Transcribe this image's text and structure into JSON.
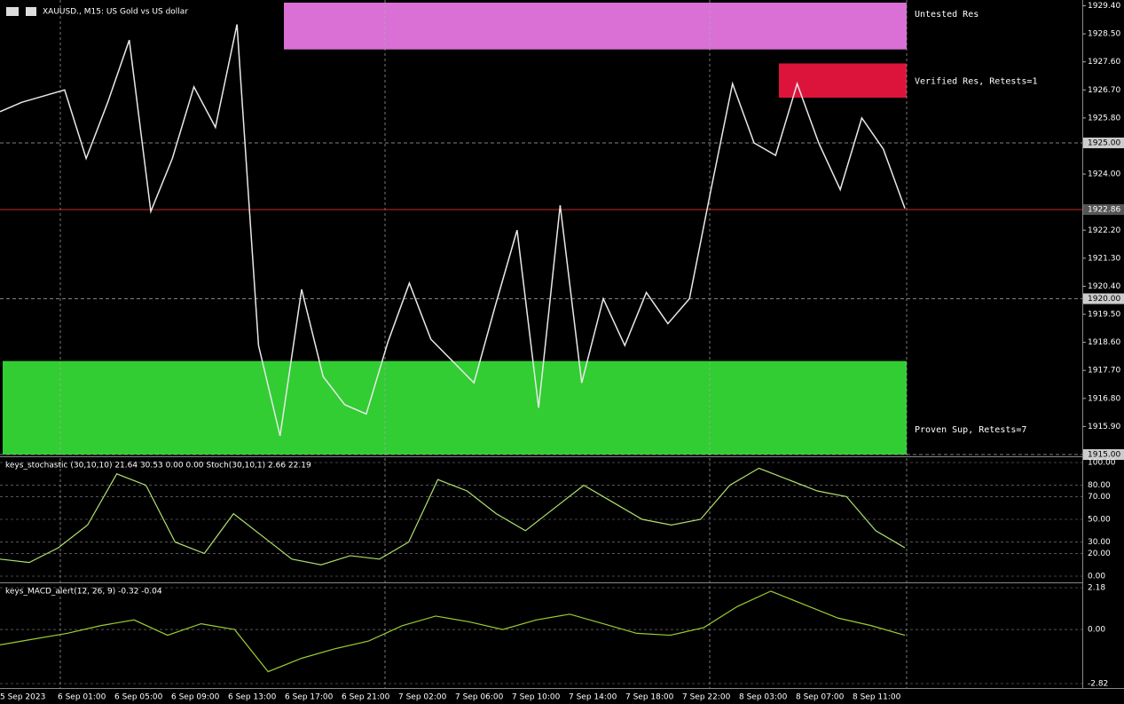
{
  "header": {
    "symbol": "XAUUSD., M15:  US Gold vs US dollar"
  },
  "price_axis": {
    "range": [
      1915.0,
      1929.5
    ],
    "ticks": [
      {
        "value": 1929.4,
        "label": "1929.40"
      },
      {
        "value": 1928.5,
        "label": "1928.50"
      },
      {
        "value": 1927.6,
        "label": "1927.60"
      },
      {
        "value": 1926.7,
        "label": "1926.70"
      },
      {
        "value": 1925.8,
        "label": "1925.80"
      },
      {
        "value": 1924,
        "label": "1924.00"
      },
      {
        "value": 1922.2,
        "label": "1922.20"
      },
      {
        "value": 1921.3,
        "label": "1921.30"
      },
      {
        "value": 1920.4,
        "label": "1920.40"
      },
      {
        "value": 1919.5,
        "label": "1919.50"
      },
      {
        "value": 1918.6,
        "label": "1918.60"
      },
      {
        "value": 1917.7,
        "label": "1917.70"
      },
      {
        "value": 1916.8,
        "label": "1916.80"
      },
      {
        "value": 1915.9,
        "label": "1915.90"
      }
    ],
    "levels": [
      {
        "value": 1925,
        "label": "1925.00"
      },
      {
        "value": 1922.86,
        "label": "1922.86"
      },
      {
        "value": 1920,
        "label": "1920.00"
      },
      {
        "value": 1915,
        "label": "1915.00"
      }
    ]
  },
  "zones": [
    {
      "label": "Untested Res",
      "top": 1929.5,
      "bottom": 1928.0,
      "color": "#da70d6"
    },
    {
      "label": "Verified Res, Retests=1",
      "top": 1927.55,
      "bottom": 1926.45,
      "color": "#dc143c"
    },
    {
      "label": "Proven Sup, Retests=7",
      "top": 1918.0,
      "bottom": 1915.0,
      "color": "#32cd32"
    }
  ],
  "price_series": {
    "color": "#e8e8e8",
    "values": [
      1926.0,
      1926.3,
      1926.5,
      1926.7,
      1924.5,
      1926.3,
      1928.3,
      1922.8,
      1924.5,
      1926.8,
      1925.5,
      1928.8,
      1918.5,
      1915.6,
      1920.3,
      1917.5,
      1916.6,
      1916.3,
      1918.6,
      1920.5,
      1918.7,
      1918.0,
      1917.3,
      1919.8,
      1922.2,
      1916.5,
      1923.0,
      1917.3,
      1920.0,
      1918.5,
      1920.2,
      1919.2,
      1920.0,
      1923.5,
      1926.9,
      1925.0,
      1924.6,
      1926.9,
      1925.0,
      1923.5,
      1925.8,
      1924.8,
      1922.9
    ]
  },
  "stochastic": {
    "title": "keys_stochastic (30,10,10) 21.64 30.53 0.00 0.00 Stoch(30,10,1) 2.66 22.19",
    "range": [
      0,
      100
    ],
    "ticks": [
      {
        "value": 100,
        "label": "100.00"
      },
      {
        "value": 80,
        "label": "80.00"
      },
      {
        "value": 70,
        "label": "70.00"
      },
      {
        "value": 50,
        "label": "50.00"
      },
      {
        "value": 30,
        "label": "30.00"
      },
      {
        "value": 20,
        "label": "20.00"
      },
      {
        "value": 0,
        "label": "0.00"
      }
    ],
    "color": "#b0e070",
    "values": [
      15,
      12,
      25,
      45,
      90,
      80,
      30,
      20,
      55,
      35,
      15,
      10,
      18,
      15,
      30,
      85,
      75,
      55,
      40,
      60,
      80,
      65,
      50,
      45,
      50,
      80,
      95,
      85,
      75,
      70,
      40,
      25
    ]
  },
  "macd": {
    "title": "keys_MACD_alert(12, 26, 9) -0.32 -0.04",
    "range": [
      -2.82,
      2.18
    ],
    "ticks": [
      {
        "value": 2.18,
        "label": "2.18"
      },
      {
        "value": 0,
        "label": "0.00"
      },
      {
        "value": -2.82,
        "label": "-2.82"
      }
    ],
    "color": "#9acd32",
    "values": [
      -0.8,
      -0.5,
      -0.2,
      0.2,
      0.5,
      -0.3,
      0.3,
      0.0,
      -2.2,
      -1.5,
      -1.0,
      -0.6,
      0.2,
      0.7,
      0.4,
      0.0,
      0.5,
      0.8,
      0.3,
      -0.2,
      -0.3,
      0.1,
      1.2,
      2.0,
      1.3,
      0.6,
      0.2,
      -0.3
    ]
  },
  "time_labels": [
    "5 Sep 2023",
    "6 Sep 01:00",
    "6 Sep 05:00",
    "6 Sep 09:00",
    "6 Sep 13:00",
    "6 Sep 17:00",
    "6 Sep 21:00",
    "7 Sep 02:00",
    "7 Sep 06:00",
    "7 Sep 10:00",
    "7 Sep 14:00",
    "7 Sep 18:00",
    "7 Sep 22:00",
    "8 Sep 03:00",
    "8 Sep 07:00",
    "8 Sep 11:00"
  ]
}
